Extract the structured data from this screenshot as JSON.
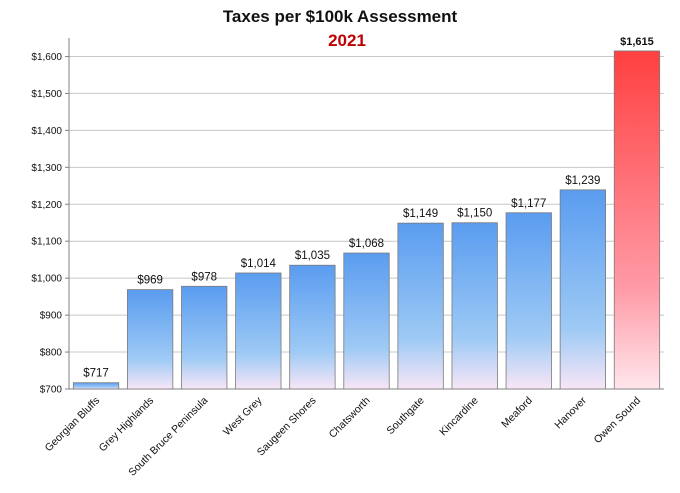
{
  "chart_data": {
    "type": "bar",
    "title": "Taxes per $100k Assessment",
    "subtitle": "2021",
    "categories": [
      "Georgian Bluffs",
      "Grey Highlands",
      "South Bruce Peninsula",
      "West Grey",
      "Saugeen Shores",
      "Chatsworth",
      "Southgate",
      "Kincardine",
      "Meaford",
      "Hanover",
      "Owen Sound"
    ],
    "values": [
      717,
      969,
      978,
      1014,
      1035,
      1068,
      1149,
      1150,
      1177,
      1239,
      1615
    ],
    "data_labels": [
      "$717",
      "$969",
      "$978",
      "$1,014",
      "$1,035",
      "$1,068",
      "$1,149",
      "$1,150",
      "$1,177",
      "$1,239",
      "$1,615"
    ],
    "ylim": [
      700,
      1650
    ],
    "yticks": [
      700,
      800,
      900,
      1000,
      1100,
      1200,
      1300,
      1400,
      1500,
      1600
    ],
    "ytick_labels": [
      "$700",
      "$800",
      "$900",
      "$1,000",
      "$1,100",
      "$1,200",
      "$1,300",
      "$1,400",
      "$1,500",
      "$1,600"
    ],
    "xlabel": "",
    "ylabel": "",
    "grid": true,
    "legend": "none",
    "highlight_index": 10,
    "colors": {
      "bar_top": "#5a9cf0",
      "bar_bottom": "#f8e6f6",
      "highlight_top": "#ff4040",
      "highlight_bottom": "#ffe6ec",
      "subtitle": "#c00000",
      "grid": "#c8c8c8",
      "axis": "#808080"
    }
  }
}
